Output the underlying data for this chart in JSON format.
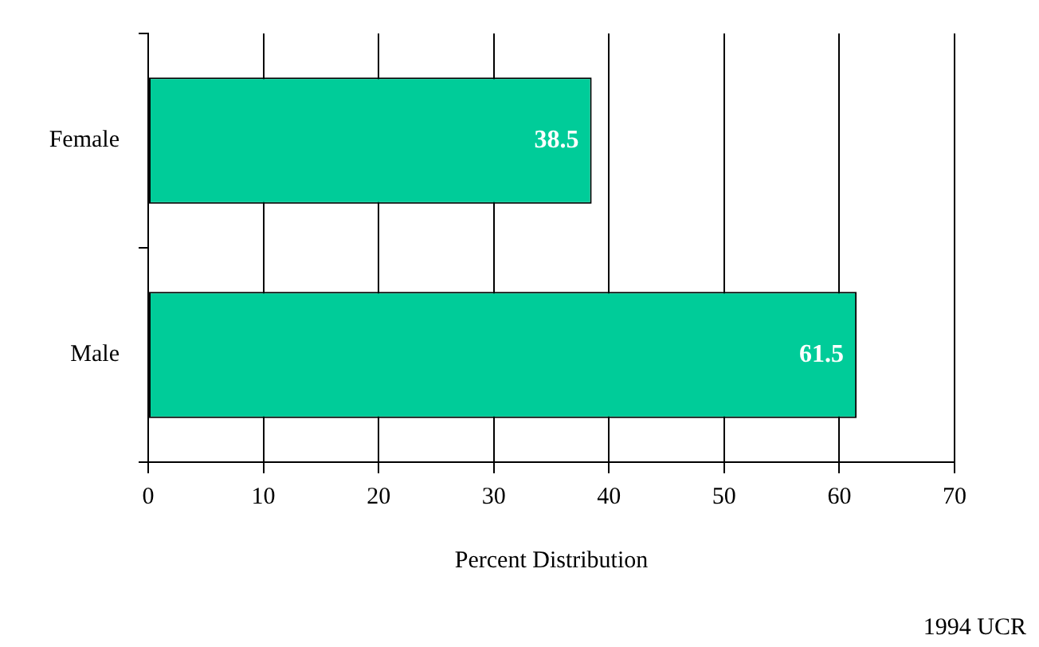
{
  "chart_data": {
    "type": "bar",
    "orientation": "horizontal",
    "categories": [
      "Female",
      "Male"
    ],
    "values": [
      38.5,
      61.5
    ],
    "color": "#00cc99",
    "xlim": [
      0,
      70
    ],
    "xticks": [
      0,
      10,
      20,
      30,
      40,
      50,
      60,
      70
    ],
    "xlabel": "Percent Distribution",
    "grid": "x",
    "data_labels": true,
    "legend": false,
    "annotations": [
      "1994 UCR"
    ]
  }
}
